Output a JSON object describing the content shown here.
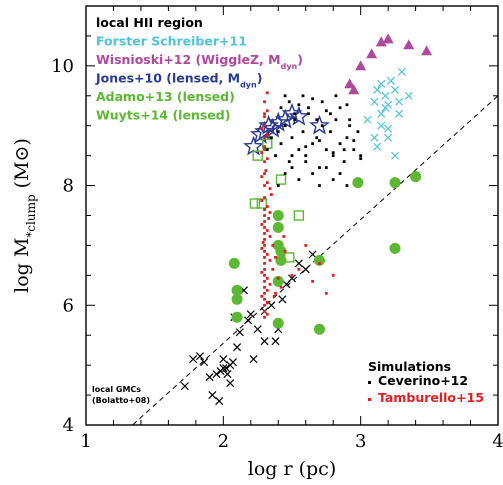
{
  "chart_data": {
    "type": "scatter",
    "title": "",
    "xlabel": "log r (pc)",
    "ylabel_main": "log M",
    "ylabel_sub": "*clump",
    "ylabel_unit": "(M⊙)",
    "xlim": [
      1,
      4
    ],
    "ylim": [
      4,
      11
    ],
    "xticks": [
      1,
      2,
      3,
      4
    ],
    "yticks": [
      4,
      6,
      8,
      10
    ],
    "xtick_labels": [
      "1",
      "2",
      "3",
      "4"
    ],
    "ytick_labels": [
      "4",
      "6",
      "8",
      "10"
    ],
    "reference_line": {
      "x": [
        1,
        4
      ],
      "y": [
        3.3,
        9.5
      ],
      "style": "dashed"
    },
    "legend": [
      {
        "label": "local HII region",
        "color": "#000000"
      },
      {
        "label": "Forster Schreiber+11",
        "color": "#4fc3d9"
      },
      {
        "label": "Wisnioski+12 (WiggleZ, M",
        "sub": "dyn",
        "suffix": ")",
        "color": "#b0489b"
      },
      {
        "label": "Jones+10 (lensed, M",
        "sub": "dyn",
        "suffix": ")",
        "color": "#2b3a91"
      },
      {
        "label": "Adamo+13 (lensed)",
        "color": "#5cb833"
      },
      {
        "label": "Wuyts+14 (lensed)",
        "color": "#5cb833"
      }
    ],
    "sim_legend": {
      "title": "Simulations",
      "items": [
        {
          "label": "Ceverino+12",
          "color": "#000000"
        },
        {
          "label": "Tamburello+15",
          "color": "#e02020"
        }
      ]
    },
    "annotation": {
      "line1": "local GMCs",
      "line2": "(Bolatto+08)"
    },
    "series": [
      {
        "name": "local GMCs (Bolatto+08)",
        "marker": "x",
        "color": "#000000",
        "x": [
          1.72,
          1.78,
          1.83,
          1.86,
          1.9,
          1.92,
          1.95,
          1.97,
          1.98,
          2.0,
          2.02,
          2.03,
          2.05,
          2.07,
          2.08,
          2.1,
          2.12,
          2.15,
          2.18,
          2.2,
          2.25,
          2.3,
          2.35,
          2.38,
          2.4,
          2.43,
          2.46,
          2.5,
          2.55,
          2.6,
          2.65,
          2.05,
          2.0,
          2.3,
          2.22
        ],
        "y": [
          4.65,
          5.1,
          5.15,
          5.05,
          4.8,
          4.5,
          4.85,
          4.4,
          4.9,
          5.1,
          4.95,
          4.85,
          4.7,
          5.05,
          5.8,
          5.3,
          5.55,
          6.25,
          5.75,
          5.85,
          5.6,
          5.9,
          6.0,
          5.4,
          5.6,
          6.1,
          6.35,
          6.45,
          6.7,
          6.6,
          6.85,
          5.0,
          4.95,
          5.4,
          5.1
        ]
      },
      {
        "name": "Forster Schreiber+11",
        "marker": "x",
        "color": "#4fc3d9",
        "x": [
          3.05,
          3.1,
          3.1,
          3.12,
          3.15,
          3.15,
          3.18,
          3.2,
          3.2,
          3.22,
          3.25,
          3.28,
          3.3,
          3.35,
          3.12,
          3.2,
          3.25,
          3.15,
          3.28,
          3.18
        ],
        "y": [
          9.1,
          9.4,
          8.8,
          9.6,
          9.7,
          9.2,
          9.5,
          9.35,
          8.95,
          9.75,
          9.6,
          9.4,
          9.9,
          9.5,
          8.65,
          8.8,
          8.5,
          9.0,
          9.2,
          9.3
        ]
      },
      {
        "name": "Wisnioski+12 (WiggleZ, Mdyn)",
        "marker": "triangle",
        "color": "#b0489b",
        "x": [
          2.92,
          2.95,
          3.0,
          3.08,
          3.15,
          3.2,
          3.35,
          3.48
        ],
        "y": [
          9.7,
          9.6,
          10.0,
          10.2,
          10.4,
          10.45,
          10.35,
          10.25
        ]
      },
      {
        "name": "Jones+10 (lensed, Mdyn)",
        "marker": "star",
        "color": "#2b3a91",
        "x": [
          2.22,
          2.27,
          2.3,
          2.33,
          2.36,
          2.4,
          2.45,
          2.5,
          2.55,
          2.7
        ],
        "y": [
          8.65,
          8.85,
          8.9,
          9.0,
          8.95,
          9.05,
          9.1,
          9.2,
          9.15,
          9.0
        ]
      },
      {
        "name": "Adamo+13 (lensed)",
        "marker": "circle",
        "color": "#5cb833",
        "x": [
          2.08,
          2.1,
          2.1,
          2.1,
          2.4,
          2.4,
          2.4,
          2.42,
          2.4,
          2.42,
          2.4,
          2.7,
          2.7,
          2.98,
          3.25,
          3.4,
          3.25
        ],
        "y": [
          6.7,
          6.25,
          6.1,
          5.8,
          7.5,
          7.3,
          7.0,
          6.75,
          6.4,
          6.9,
          5.7,
          6.75,
          5.6,
          8.05,
          8.05,
          8.15,
          6.95
        ]
      },
      {
        "name": "Wuyts+14 (lensed)",
        "marker": "square",
        "color": "#5cb833",
        "x": [
          2.23,
          2.28,
          2.32,
          2.42,
          2.48,
          2.55,
          2.25
        ],
        "y": [
          7.7,
          7.7,
          8.7,
          8.1,
          6.8,
          7.5,
          8.5
        ]
      },
      {
        "name": "local HII region",
        "marker": "dot",
        "color": "#000000",
        "x": [
          2.32,
          2.35,
          2.38,
          2.4,
          2.42,
          2.45,
          2.48,
          2.5,
          2.52,
          2.55,
          2.58,
          2.6,
          2.62,
          2.65,
          2.68,
          2.7,
          2.72,
          2.75,
          2.78,
          2.8,
          2.82,
          2.85,
          2.88,
          2.9,
          2.92,
          2.95,
          2.98,
          3.0,
          2.45,
          2.5,
          2.55,
          2.6,
          2.65,
          2.7,
          2.75,
          2.8,
          2.85,
          2.9,
          2.42,
          2.48,
          2.52,
          2.58,
          2.62,
          2.68,
          2.72,
          2.78,
          2.85,
          2.92,
          2.4,
          2.5,
          2.6,
          2.7,
          2.8,
          2.88,
          2.95,
          3.0,
          2.45,
          2.55,
          2.65,
          2.75,
          2.82,
          2.9
        ],
        "y": [
          8.6,
          8.8,
          8.5,
          8.9,
          8.7,
          9.0,
          8.4,
          8.8,
          9.1,
          8.6,
          8.9,
          8.5,
          9.2,
          8.7,
          8.8,
          8.3,
          9.0,
          8.6,
          8.9,
          8.5,
          9.1,
          8.7,
          8.4,
          8.8,
          9.0,
          8.6,
          8.9,
          8.5,
          8.2,
          8.3,
          8.1,
          8.4,
          8.2,
          8.0,
          8.3,
          8.1,
          8.2,
          8.0,
          9.3,
          9.4,
          9.2,
          9.5,
          9.3,
          9.1,
          9.4,
          9.2,
          9.3,
          9.1,
          8.0,
          8.5,
          8.65,
          8.75,
          8.55,
          8.6,
          8.75,
          8.45,
          9.5,
          9.35,
          9.45,
          9.25,
          9.5,
          9.35
        ]
      },
      {
        "name": "Tamburello+15",
        "marker": "dot",
        "color": "#e02020",
        "x": [
          2.3,
          2.3,
          2.3,
          2.3,
          2.3,
          2.3,
          2.3,
          2.3,
          2.3,
          2.3,
          2.3,
          2.3,
          2.3,
          2.3,
          2.3,
          2.3,
          2.3,
          2.3,
          2.3,
          2.3,
          2.3,
          2.3,
          2.3,
          2.3,
          2.3,
          2.3,
          2.3,
          2.3,
          2.32,
          2.32,
          2.32,
          2.32,
          2.32,
          2.32,
          2.32,
          2.32,
          2.32,
          2.32,
          2.32,
          2.32,
          2.28,
          2.28,
          2.28,
          2.28,
          2.28,
          2.28,
          2.28,
          2.28,
          2.34,
          2.34,
          2.34,
          2.34,
          2.34,
          2.36,
          2.36,
          2.38,
          2.38,
          2.42,
          2.45,
          2.5,
          2.55,
          2.6,
          2.65,
          2.7,
          2.75,
          2.8,
          2.33,
          2.35,
          2.31,
          2.29,
          2.37,
          2.4,
          2.44,
          2.3,
          2.3
        ],
        "y": [
          5.8,
          6.0,
          6.2,
          6.4,
          6.6,
          6.8,
          7.0,
          7.2,
          7.4,
          7.6,
          7.8,
          8.0,
          8.2,
          8.4,
          8.6,
          8.8,
          9.0,
          9.2,
          9.4,
          5.9,
          6.1,
          6.3,
          6.5,
          6.7,
          6.9,
          7.1,
          7.3,
          7.5,
          6.05,
          6.45,
          6.85,
          7.25,
          7.65,
          8.05,
          8.45,
          8.85,
          9.25,
          9.55,
          5.85,
          6.25,
          6.15,
          6.55,
          6.95,
          7.35,
          7.75,
          8.15,
          8.55,
          8.95,
          6.35,
          6.75,
          7.15,
          7.55,
          7.95,
          6.6,
          7.0,
          6.2,
          6.8,
          6.3,
          6.9,
          6.5,
          6.6,
          7.0,
          6.4,
          6.7,
          6.2,
          6.5,
          7.45,
          7.85,
          8.25,
          7.05,
          6.15,
          6.45,
          7.15,
          8.65,
          9.15
        ]
      }
    ]
  }
}
